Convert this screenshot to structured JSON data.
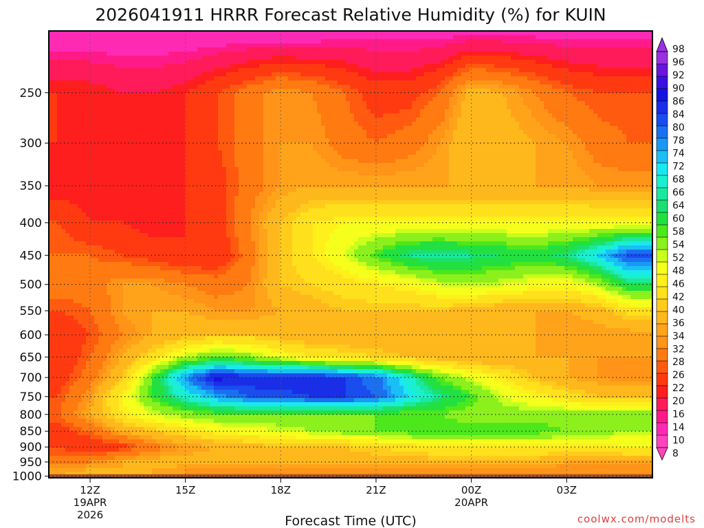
{
  "title": "2026041911 HRRR Forecast Relative Humidity (%) for KUIN",
  "credit": "coolwx.com/modelts",
  "chart_data": {
    "type": "heatmap",
    "title": "2026041911 HRRR Forecast Relative Humidity (%) for KUIN",
    "xlabel": "Forecast Time (UTC)",
    "ylabel": "",
    "y_scale": "log",
    "y_reversed": true,
    "ylim": [
      1000,
      200
    ],
    "grid": true,
    "y_ticks": [
      250,
      300,
      350,
      400,
      450,
      500,
      550,
      600,
      650,
      700,
      750,
      800,
      850,
      900,
      950,
      1000
    ],
    "x_ticks": [
      {
        "hour": 12,
        "label": "12Z",
        "sub": [
          "19APR",
          "2026"
        ]
      },
      {
        "hour": 15,
        "label": "15Z",
        "sub": []
      },
      {
        "hour": 18,
        "label": "18Z",
        "sub": []
      },
      {
        "hour": 21,
        "label": "21Z",
        "sub": []
      },
      {
        "hour": 24,
        "label": "00Z",
        "sub": [
          "20APR"
        ]
      },
      {
        "hour": 27,
        "label": "03Z",
        "sub": []
      }
    ],
    "x_hours": [
      11,
      12,
      13,
      14,
      15,
      16,
      17,
      18,
      19,
      20,
      21,
      22,
      23,
      24,
      25,
      26,
      27,
      28,
      29
    ],
    "levels": [
      200,
      250,
      300,
      350,
      400,
      450,
      500,
      550,
      600,
      650,
      700,
      750,
      800,
      850,
      900,
      950,
      975,
      1000
    ],
    "values": [
      [
        10,
        10,
        10,
        10,
        10,
        10,
        10,
        10,
        10,
        12,
        12,
        12,
        12,
        12,
        12,
        12,
        12,
        12,
        12
      ],
      [
        22,
        22,
        20,
        20,
        22,
        26,
        30,
        34,
        32,
        28,
        24,
        24,
        28,
        38,
        36,
        32,
        28,
        26,
        26
      ],
      [
        22,
        20,
        20,
        20,
        22,
        26,
        30,
        34,
        34,
        30,
        28,
        30,
        34,
        40,
        38,
        36,
        34,
        30,
        28
      ],
      [
        20,
        20,
        20,
        20,
        22,
        24,
        30,
        34,
        36,
        36,
        36,
        36,
        36,
        36,
        36,
        36,
        36,
        34,
        34
      ],
      [
        26,
        22,
        22,
        20,
        22,
        24,
        32,
        40,
        46,
        48,
        48,
        48,
        48,
        48,
        48,
        48,
        48,
        48,
        48
      ],
      [
        28,
        28,
        26,
        24,
        22,
        22,
        30,
        40,
        46,
        52,
        60,
        66,
        68,
        66,
        64,
        62,
        66,
        74,
        86
      ],
      [
        30,
        30,
        34,
        34,
        32,
        30,
        32,
        40,
        42,
        44,
        46,
        48,
        52,
        54,
        52,
        50,
        48,
        54,
        64
      ],
      [
        26,
        28,
        34,
        36,
        36,
        34,
        34,
        36,
        38,
        40,
        40,
        40,
        40,
        38,
        36,
        36,
        36,
        38,
        44
      ],
      [
        22,
        26,
        32,
        36,
        38,
        40,
        40,
        38,
        36,
        36,
        36,
        36,
        36,
        36,
        36,
        36,
        34,
        34,
        34
      ],
      [
        22,
        28,
        36,
        44,
        54,
        58,
        56,
        50,
        46,
        44,
        42,
        40,
        38,
        36,
        36,
        36,
        36,
        34,
        34
      ],
      [
        24,
        30,
        40,
        60,
        80,
        92,
        88,
        90,
        90,
        86,
        82,
        70,
        58,
        52,
        46,
        40,
        36,
        34,
        32
      ],
      [
        26,
        34,
        48,
        60,
        70,
        78,
        84,
        84,
        86,
        86,
        84,
        74,
        66,
        60,
        52,
        48,
        44,
        40,
        40
      ],
      [
        28,
        36,
        46,
        52,
        56,
        58,
        58,
        58,
        58,
        58,
        58,
        58,
        58,
        56,
        56,
        56,
        56,
        56,
        56
      ],
      [
        24,
        28,
        36,
        40,
        44,
        48,
        50,
        52,
        54,
        56,
        58,
        60,
        60,
        60,
        60,
        60,
        58,
        56,
        54
      ],
      [
        26,
        22,
        24,
        30,
        34,
        36,
        38,
        40,
        40,
        40,
        42,
        44,
        46,
        46,
        46,
        46,
        46,
        46,
        48
      ],
      [
        30,
        32,
        36,
        38,
        38,
        38,
        38,
        38,
        38,
        38,
        38,
        38,
        38,
        38,
        38,
        38,
        36,
        34,
        36
      ],
      [
        34,
        36,
        36,
        36,
        34,
        32,
        32,
        32,
        32,
        32,
        32,
        32,
        32,
        32,
        32,
        32,
        32,
        32,
        32
      ],
      [
        36,
        38,
        38,
        36,
        34,
        32,
        32,
        32,
        32,
        32,
        32,
        32,
        32,
        32,
        32,
        32,
        32,
        32,
        32
      ]
    ],
    "colorbar": [
      {
        "v": 8,
        "c": "#ff44bb"
      },
      {
        "v": 10,
        "c": "#ff2ab4"
      },
      {
        "v": 14,
        "c": "#ff1a88"
      },
      {
        "v": 16,
        "c": "#ff1a5a"
      },
      {
        "v": 20,
        "c": "#ff1e1e"
      },
      {
        "v": 22,
        "c": "#ff3a10"
      },
      {
        "v": 26,
        "c": "#ff5a10"
      },
      {
        "v": 28,
        "c": "#ff7a10"
      },
      {
        "v": 32,
        "c": "#ff9418"
      },
      {
        "v": 34,
        "c": "#ffa41a"
      },
      {
        "v": 36,
        "c": "#ffb81c"
      },
      {
        "v": 40,
        "c": "#ffcc1c"
      },
      {
        "v": 42,
        "c": "#ffe01c"
      },
      {
        "v": 46,
        "c": "#fff01c"
      },
      {
        "v": 48,
        "c": "#f6ff1c"
      },
      {
        "v": 52,
        "c": "#c8ff1c"
      },
      {
        "v": 54,
        "c": "#8cf01c"
      },
      {
        "v": 58,
        "c": "#4ce81c"
      },
      {
        "v": 60,
        "c": "#22e040"
      },
      {
        "v": 64,
        "c": "#1ae070"
      },
      {
        "v": 66,
        "c": "#1ae8a0"
      },
      {
        "v": 68,
        "c": "#1af0d0"
      },
      {
        "v": 72,
        "c": "#1ae8f0"
      },
      {
        "v": 74,
        "c": "#1ac0f5"
      },
      {
        "v": 78,
        "c": "#1a98f5"
      },
      {
        "v": 80,
        "c": "#1a70f0"
      },
      {
        "v": 84,
        "c": "#1a4cee"
      },
      {
        "v": 86,
        "c": "#1a2ee8"
      },
      {
        "v": 90,
        "c": "#1414e0"
      },
      {
        "v": 92,
        "c": "#3a10e0"
      },
      {
        "v": 96,
        "c": "#6a14e0"
      },
      {
        "v": 98,
        "c": "#9a30e0"
      }
    ],
    "colorbar_labels": [
      8,
      10,
      14,
      16,
      20,
      22,
      26,
      28,
      32,
      34,
      36,
      40,
      42,
      46,
      48,
      52,
      54,
      58,
      60,
      64,
      66,
      68,
      72,
      74,
      78,
      80,
      84,
      86,
      90,
      92,
      96,
      98
    ],
    "ground_color": "#a0522d",
    "ground_level": 993
  }
}
